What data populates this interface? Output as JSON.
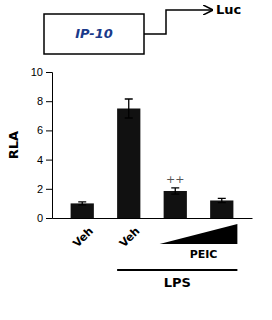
{
  "chart_data": {
    "type": "bar",
    "ylabel": "RLA",
    "categories": [
      null,
      null,
      null,
      null
    ],
    "values": [
      1.0,
      7.5,
      1.85,
      1.2
    ],
    "errors": [
      0.1,
      0.65,
      0.22,
      0.15
    ],
    "color": "#111111",
    "ylim": [
      0,
      10
    ],
    "yticks": [
      0,
      2,
      4,
      6,
      8,
      10
    ],
    "tick_labels": "y",
    "annotations": [
      "++",
      "Veh",
      "Veh",
      "PEIC",
      "LPS",
      "IP-10",
      "Luc"
    ]
  }
}
